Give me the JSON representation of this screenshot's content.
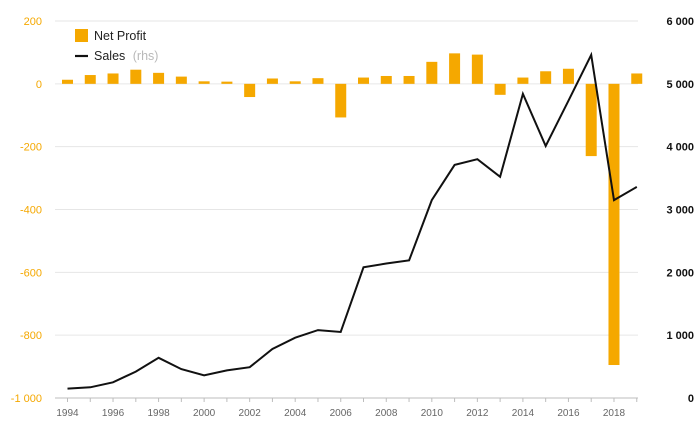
{
  "chart_data": {
    "type": "bar+line",
    "x": [
      1994,
      1995,
      1996,
      1997,
      1998,
      1999,
      2000,
      2001,
      2002,
      2003,
      2004,
      2005,
      2006,
      2007,
      2008,
      2009,
      2010,
      2011,
      2012,
      2013,
      2014,
      2015,
      2016,
      2017,
      2018,
      2019
    ],
    "x_tick_labels": [
      "1994",
      "1996",
      "1998",
      "2000",
      "2002",
      "2004",
      "2006",
      "2008",
      "2010",
      "2012",
      "2014",
      "2016",
      "2018"
    ],
    "series": [
      {
        "name": "Net Profit",
        "type": "bar",
        "axis": "left",
        "color": "#f5a800",
        "values": [
          13,
          28,
          33,
          45,
          35,
          23,
          8,
          7,
          -42,
          17,
          8,
          18,
          -107,
          20,
          25,
          25,
          70,
          97,
          93,
          -35,
          20,
          40,
          48,
          -230,
          -895,
          33
        ]
      },
      {
        "name": "Sales",
        "name_suffix": "(rhs)",
        "type": "line",
        "axis": "right",
        "color": "#111111",
        "values": [
          150,
          170,
          250,
          420,
          640,
          460,
          360,
          440,
          490,
          780,
          960,
          1080,
          1050,
          2080,
          2140,
          2190,
          3150,
          3710,
          3800,
          3520,
          4840,
          4010,
          4730,
          5460,
          3150,
          3360
        ]
      }
    ],
    "y_left": {
      "min": -1000,
      "max": 200,
      "ticks": [
        "200",
        "0",
        "-200",
        "-400",
        "-600",
        "-800",
        "-1 000"
      ],
      "color": "#f5a800"
    },
    "y_right": {
      "min": 0,
      "max": 6000,
      "ticks": [
        "6 000",
        "5 000",
        "4 000",
        "3 000",
        "2 000",
        "1 000",
        "0"
      ],
      "color": "#111111"
    },
    "grid": true,
    "legend": {
      "position": "top-left"
    },
    "title": "",
    "xlabel": "",
    "ylabel": ""
  }
}
